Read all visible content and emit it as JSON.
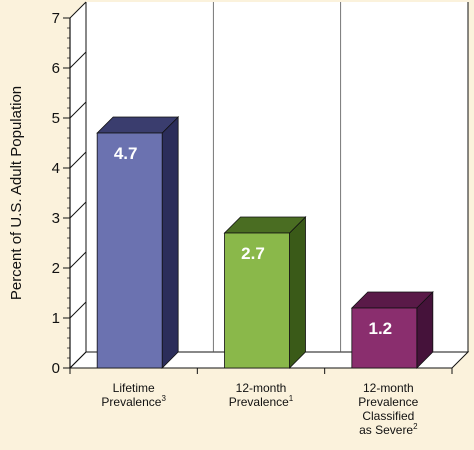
{
  "chart_data": {
    "type": "bar",
    "ylabel": "Percent of U.S. Adult Population",
    "xlabel": "",
    "title": "",
    "ylim": [
      0,
      7
    ],
    "yticks": [
      "0",
      "1",
      "2",
      "3",
      "4",
      "5",
      "6",
      "7"
    ],
    "categories": [
      {
        "lines": [
          "Lifetime",
          "Prevalence"
        ],
        "sup": "3"
      },
      {
        "lines": [
          "12-month",
          "Prevalence"
        ],
        "sup": "1"
      },
      {
        "lines": [
          "12-month",
          "Prevalence",
          "Classified",
          "as Severe"
        ],
        "sup": "2"
      }
    ],
    "values": [
      4.7,
      2.7,
      1.2
    ],
    "value_labels": [
      "4.7",
      "2.7",
      "1.2"
    ],
    "colors": [
      {
        "front": "#6b72b0",
        "top": "#3a3d6e",
        "side": "#2b2d5a"
      },
      {
        "front": "#8ab84a",
        "top": "#4a6d22",
        "side": "#3a5a18"
      },
      {
        "front": "#8a2e6e",
        "top": "#5a1a48",
        "side": "#45123a"
      }
    ],
    "grid": false,
    "legend": "none"
  }
}
